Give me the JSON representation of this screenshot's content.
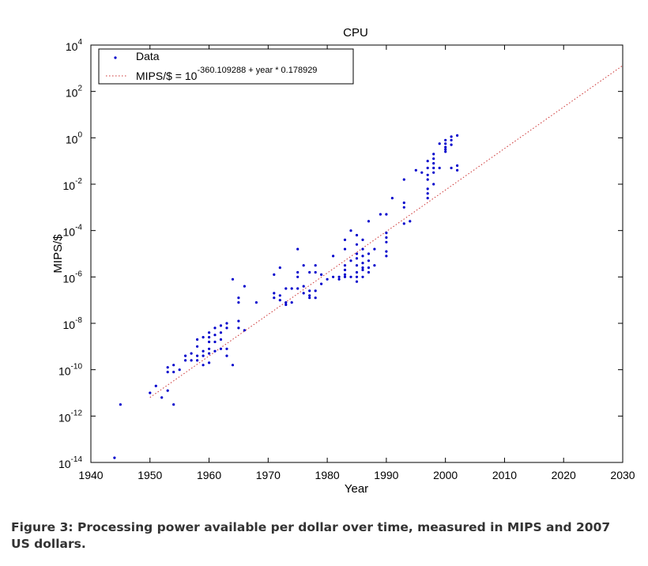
{
  "chart_data": {
    "type": "scatter",
    "title": "CPU",
    "xlabel": "Year",
    "ylabel": "MIPS/$",
    "xlim": [
      1940,
      2030
    ],
    "ylim_exponent": [
      -14,
      4
    ],
    "log_scale_y": true,
    "grid": false,
    "legend_position": "top-left",
    "x_ticks": [
      "1940",
      "1950",
      "1960",
      "1970",
      "1980",
      "1990",
      "2000",
      "2010",
      "2020",
      "2030"
    ],
    "y_ticks": [
      {
        "base": "10",
        "exp": "4"
      },
      {
        "base": "10",
        "exp": "2"
      },
      {
        "base": "10",
        "exp": "0"
      },
      {
        "base": "10",
        "exp": "-2"
      },
      {
        "base": "10",
        "exp": "-4"
      },
      {
        "base": "10",
        "exp": "-6"
      },
      {
        "base": "10",
        "exp": "-8"
      },
      {
        "base": "10",
        "exp": "-10"
      },
      {
        "base": "10",
        "exp": "-12"
      },
      {
        "base": "10",
        "exp": "-14"
      }
    ],
    "legend": {
      "data_label": "Data",
      "fit_prefix": "MIPS/$ = 10",
      "fit_exponent": "-360.109288 + year * 0.178929"
    },
    "fit": {
      "intercept": -360.109288,
      "slope": 0.178929,
      "x_range": [
        1950,
        2030
      ]
    },
    "colors": {
      "data": "#0000cc",
      "fit": "#cc3333",
      "axes": "#000000"
    },
    "series": [
      {
        "name": "Data",
        "points_log10": [
          [
            1944,
            -13.8
          ],
          [
            1945,
            -11.5
          ],
          [
            1950,
            -11.0
          ],
          [
            1951,
            -10.7
          ],
          [
            1952,
            -11.2
          ],
          [
            1953,
            -10.9
          ],
          [
            1953,
            -10.1
          ],
          [
            1953,
            -9.9
          ],
          [
            1954,
            -11.5
          ],
          [
            1954,
            -9.8
          ],
          [
            1954,
            -10.1
          ],
          [
            1955,
            -10.0
          ],
          [
            1956,
            -9.6
          ],
          [
            1956,
            -9.4
          ],
          [
            1957,
            -9.3
          ],
          [
            1957,
            -9.6
          ],
          [
            1958,
            -9.4
          ],
          [
            1958,
            -9.0
          ],
          [
            1958,
            -9.6
          ],
          [
            1958,
            -8.7
          ],
          [
            1959,
            -9.2
          ],
          [
            1959,
            -8.6
          ],
          [
            1959,
            -9.8
          ],
          [
            1959,
            -9.4
          ],
          [
            1960,
            -9.1
          ],
          [
            1960,
            -8.8
          ],
          [
            1960,
            -8.4
          ],
          [
            1960,
            -9.3
          ],
          [
            1960,
            -8.6
          ],
          [
            1960,
            -9.7
          ],
          [
            1961,
            -8.5
          ],
          [
            1961,
            -8.8
          ],
          [
            1961,
            -9.2
          ],
          [
            1961,
            -8.2
          ],
          [
            1962,
            -8.1
          ],
          [
            1962,
            -8.4
          ],
          [
            1962,
            -8.7
          ],
          [
            1962,
            -9.1
          ],
          [
            1963,
            -8.0
          ],
          [
            1963,
            -8.2
          ],
          [
            1963,
            -9.4
          ],
          [
            1963,
            -9.1
          ],
          [
            1964,
            -6.1
          ],
          [
            1964,
            -9.8
          ],
          [
            1965,
            -7.1
          ],
          [
            1965,
            -6.9
          ],
          [
            1965,
            -8.2
          ],
          [
            1965,
            -7.9
          ],
          [
            1966,
            -6.4
          ],
          [
            1966,
            -8.3
          ],
          [
            1968,
            -7.1
          ],
          [
            1971,
            -5.9
          ],
          [
            1971,
            -6.7
          ],
          [
            1971,
            -6.9
          ],
          [
            1972,
            -5.6
          ],
          [
            1972,
            -7.0
          ],
          [
            1972,
            -6.8
          ],
          [
            1973,
            -7.2
          ],
          [
            1973,
            -6.5
          ],
          [
            1973,
            -7.1
          ],
          [
            1974,
            -7.1
          ],
          [
            1974,
            -6.5
          ],
          [
            1975,
            -6.5
          ],
          [
            1975,
            -6.0
          ],
          [
            1975,
            -5.8
          ],
          [
            1975,
            -4.8
          ],
          [
            1976,
            -6.4
          ],
          [
            1976,
            -5.5
          ],
          [
            1976,
            -6.7
          ],
          [
            1977,
            -6.6
          ],
          [
            1977,
            -6.8
          ],
          [
            1977,
            -6.9
          ],
          [
            1977,
            -5.8
          ],
          [
            1978,
            -6.6
          ],
          [
            1978,
            -6.9
          ],
          [
            1978,
            -5.8
          ],
          [
            1978,
            -5.5
          ],
          [
            1979,
            -6.3
          ],
          [
            1979,
            -5.9
          ],
          [
            1980,
            -6.1
          ],
          [
            1981,
            -6.0
          ],
          [
            1981,
            -5.1
          ],
          [
            1982,
            -6.0
          ],
          [
            1982,
            -6.1
          ],
          [
            1983,
            -5.7
          ],
          [
            1983,
            -5.5
          ],
          [
            1983,
            -4.8
          ],
          [
            1983,
            -6.0
          ],
          [
            1983,
            -5.9
          ],
          [
            1983,
            -4.4
          ],
          [
            1984,
            -4.0
          ],
          [
            1984,
            -5.3
          ],
          [
            1984,
            -6.0
          ],
          [
            1985,
            -5.2
          ],
          [
            1985,
            -5.5
          ],
          [
            1985,
            -5.8
          ],
          [
            1985,
            -6.0
          ],
          [
            1985,
            -6.2
          ],
          [
            1985,
            -4.6
          ],
          [
            1985,
            -4.2
          ],
          [
            1985,
            -5.0
          ],
          [
            1986,
            -5.4
          ],
          [
            1986,
            -5.1
          ],
          [
            1986,
            -5.7
          ],
          [
            1986,
            -6.0
          ],
          [
            1986,
            -4.8
          ],
          [
            1986,
            -4.4
          ],
          [
            1986,
            -5.6
          ],
          [
            1987,
            -5.0
          ],
          [
            1987,
            -5.3
          ],
          [
            1987,
            -5.6
          ],
          [
            1987,
            -5.8
          ],
          [
            1987,
            -3.6
          ],
          [
            1988,
            -5.5
          ],
          [
            1988,
            -4.8
          ],
          [
            1989,
            -3.3
          ],
          [
            1990,
            -3.3
          ],
          [
            1990,
            -4.3
          ],
          [
            1990,
            -4.5
          ],
          [
            1990,
            -4.9
          ],
          [
            1990,
            -5.1
          ],
          [
            1990,
            -4.1
          ],
          [
            1991,
            -2.6
          ],
          [
            1993,
            -1.8
          ],
          [
            1993,
            -2.8
          ],
          [
            1993,
            -3.0
          ],
          [
            1993,
            -3.7
          ],
          [
            1994,
            -3.6
          ],
          [
            1995,
            -1.4
          ],
          [
            1996,
            -1.5
          ],
          [
            1997,
            -1.0
          ],
          [
            1997,
            -1.3
          ],
          [
            1997,
            -1.6
          ],
          [
            1997,
            -1.8
          ],
          [
            1997,
            -2.2
          ],
          [
            1997,
            -2.4
          ],
          [
            1997,
            -2.6
          ],
          [
            1998,
            -0.7
          ],
          [
            1998,
            -0.9
          ],
          [
            1998,
            -1.1
          ],
          [
            1998,
            -1.5
          ],
          [
            1998,
            -2.0
          ],
          [
            1998,
            -1.3
          ],
          [
            1999,
            -0.25
          ],
          [
            1999,
            -1.3
          ],
          [
            2000,
            -0.1
          ],
          [
            2000,
            -0.25
          ],
          [
            2000,
            -0.4
          ],
          [
            2000,
            -0.5
          ],
          [
            2000,
            -0.6
          ],
          [
            2001,
            0.05
          ],
          [
            2001,
            -0.1
          ],
          [
            2001,
            -0.3
          ],
          [
            2001,
            -1.3
          ],
          [
            2002,
            0.1
          ],
          [
            2002,
            -1.2
          ],
          [
            2002,
            -1.4
          ]
        ]
      }
    ]
  },
  "caption": "Figure 3: Processing power available per dollar over time, measured in MIPS and 2007 US dollars."
}
